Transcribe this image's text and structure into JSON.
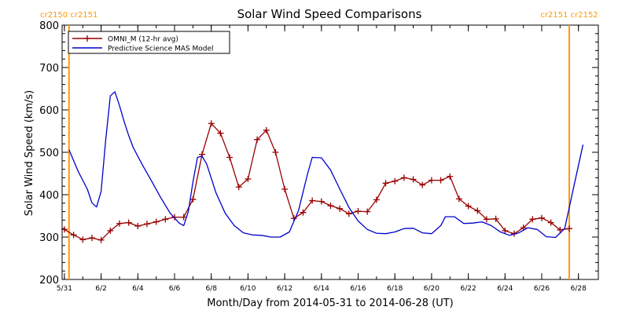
{
  "chart_data": {
    "type": "line",
    "title": "Solar Wind Speed Comparisons",
    "xlabel": "Month/Day from 2014-05-31 to 2014-06-28 (UT)",
    "ylabel": "Solar Wind Speed (km/s)",
    "xlim": [
      "2014-05-30T21:00",
      "2014-06-29T02:00"
    ],
    "ylim": [
      200,
      800
    ],
    "y_ticks": [
      200,
      300,
      400,
      500,
      600,
      700,
      800
    ],
    "x_ticks": [
      {
        "date": "2014-05-31",
        "label": "5/31"
      },
      {
        "date": "2014-06-02",
        "label": "6/2"
      },
      {
        "date": "2014-06-04",
        "label": "6/4"
      },
      {
        "date": "2014-06-06",
        "label": "6/6"
      },
      {
        "date": "2014-06-08",
        "label": "6/8"
      },
      {
        "date": "2014-06-10",
        "label": "6/10"
      },
      {
        "date": "2014-06-12",
        "label": "6/12"
      },
      {
        "date": "2014-06-14",
        "label": "6/14"
      },
      {
        "date": "2014-06-16",
        "label": "6/16"
      },
      {
        "date": "2014-06-18",
        "label": "6/18"
      },
      {
        "date": "2014-06-20",
        "label": "6/20"
      },
      {
        "date": "2014-06-22",
        "label": "6/22"
      },
      {
        "date": "2014-06-24",
        "label": "6/24"
      },
      {
        "date": "2014-06-26",
        "label": "6/26"
      },
      {
        "date": "2014-06-28",
        "label": "6/28"
      }
    ],
    "grid": false,
    "legend_position": "top-left",
    "carrington_markers": [
      {
        "date": "2014-05-31T06:00",
        "label": "cr2150 cr2151",
        "color": "#ff9900"
      },
      {
        "date": "2014-06-27T12:00",
        "label": "cr2151 cr2152",
        "color": "#ff9900"
      }
    ],
    "series": [
      {
        "name": "OMNI_M (12-hr avg)",
        "color": "#990000",
        "marker": "+",
        "points": [
          [
            "2014-05-31T00:00",
            318
          ],
          [
            "2014-05-31T12:00",
            305
          ],
          [
            "2014-06-01T00:00",
            294
          ],
          [
            "2014-06-01T12:00",
            298
          ],
          [
            "2014-06-02T00:00",
            293
          ],
          [
            "2014-06-02T12:00",
            315
          ],
          [
            "2014-06-03T00:00",
            332
          ],
          [
            "2014-06-03T12:00",
            334
          ],
          [
            "2014-06-04T00:00",
            326
          ],
          [
            "2014-06-04T12:00",
            331
          ],
          [
            "2014-06-05T00:00",
            336
          ],
          [
            "2014-06-05T12:00",
            342
          ],
          [
            "2014-06-06T00:00",
            347
          ],
          [
            "2014-06-06T12:00",
            347
          ],
          [
            "2014-06-07T00:00",
            389
          ],
          [
            "2014-06-07T12:00",
            495
          ],
          [
            "2014-06-08T00:00",
            568
          ],
          [
            "2014-06-08T12:00",
            545
          ],
          [
            "2014-06-09T00:00",
            488
          ],
          [
            "2014-06-09T12:00",
            418
          ],
          [
            "2014-06-10T00:00",
            437
          ],
          [
            "2014-06-10T12:00",
            530
          ],
          [
            "2014-06-11T00:00",
            552
          ],
          [
            "2014-06-11T12:00",
            500
          ],
          [
            "2014-06-12T00:00",
            413
          ],
          [
            "2014-06-12T12:00",
            344
          ],
          [
            "2014-06-13T00:00",
            358
          ],
          [
            "2014-06-13T12:00",
            386
          ],
          [
            "2014-06-14T00:00",
            384
          ],
          [
            "2014-06-14T12:00",
            374
          ],
          [
            "2014-06-15T00:00",
            367
          ],
          [
            "2014-06-15T12:00",
            355
          ],
          [
            "2014-06-16T00:00",
            361
          ],
          [
            "2014-06-16T12:00",
            360
          ],
          [
            "2014-06-17T00:00",
            388
          ],
          [
            "2014-06-17T12:00",
            427
          ],
          [
            "2014-06-18T00:00",
            432
          ],
          [
            "2014-06-18T12:00",
            440
          ],
          [
            "2014-06-19T00:00",
            436
          ],
          [
            "2014-06-19T12:00",
            423
          ],
          [
            "2014-06-20T00:00",
            434
          ],
          [
            "2014-06-20T12:00",
            434
          ],
          [
            "2014-06-21T00:00",
            443
          ],
          [
            "2014-06-21T12:00",
            390
          ],
          [
            "2014-06-22T00:00",
            373
          ],
          [
            "2014-06-22T12:00",
            362
          ],
          [
            "2014-06-23T00:00",
            342
          ],
          [
            "2014-06-23T12:00",
            343
          ],
          [
            "2014-06-24T00:00",
            315
          ],
          [
            "2014-06-24T12:00",
            308
          ],
          [
            "2014-06-25T00:00",
            322
          ],
          [
            "2014-06-25T12:00",
            342
          ],
          [
            "2014-06-26T00:00",
            345
          ],
          [
            "2014-06-26T12:00",
            334
          ],
          [
            "2014-06-27T00:00",
            317
          ],
          [
            "2014-06-27T12:00",
            320
          ]
        ]
      },
      {
        "name": "Predictive Science MAS Model",
        "color": "#0000cc",
        "marker": "none",
        "points": [
          [
            "2014-05-31T06:00",
            506
          ],
          [
            "2014-05-31T18:00",
            455
          ],
          [
            "2014-06-01T06:00",
            413
          ],
          [
            "2014-06-01T12:00",
            381
          ],
          [
            "2014-06-01T18:00",
            371
          ],
          [
            "2014-06-02T00:00",
            408
          ],
          [
            "2014-06-02T06:00",
            530
          ],
          [
            "2014-06-02T12:00",
            633
          ],
          [
            "2014-06-02T18:00",
            643
          ],
          [
            "2014-06-03T00:00",
            610
          ],
          [
            "2014-06-03T06:00",
            573
          ],
          [
            "2014-06-03T12:00",
            540
          ],
          [
            "2014-06-03T18:00",
            511
          ],
          [
            "2014-06-04T06:00",
            470
          ],
          [
            "2014-06-04T18:00",
            432
          ],
          [
            "2014-06-05T06:00",
            393
          ],
          [
            "2014-06-05T18:00",
            357
          ],
          [
            "2014-06-06T06:00",
            333
          ],
          [
            "2014-06-06T12:00",
            327
          ],
          [
            "2014-06-06T18:00",
            360
          ],
          [
            "2014-06-07T00:00",
            430
          ],
          [
            "2014-06-07T06:00",
            488
          ],
          [
            "2014-06-07T12:00",
            491
          ],
          [
            "2014-06-07T18:00",
            472
          ],
          [
            "2014-06-08T06:00",
            405
          ],
          [
            "2014-06-08T18:00",
            357
          ],
          [
            "2014-06-09T06:00",
            327
          ],
          [
            "2014-06-09T18:00",
            310
          ],
          [
            "2014-06-10T06:00",
            305
          ],
          [
            "2014-06-10T18:00",
            304
          ],
          [
            "2014-06-11T06:00",
            300
          ],
          [
            "2014-06-11T18:00",
            300
          ],
          [
            "2014-06-12T06:00",
            312
          ],
          [
            "2014-06-12T18:00",
            362
          ],
          [
            "2014-06-13T06:00",
            450
          ],
          [
            "2014-06-13T12:00",
            488
          ],
          [
            "2014-06-14T00:00",
            487
          ],
          [
            "2014-06-14T12:00",
            458
          ],
          [
            "2014-06-15T00:00",
            413
          ],
          [
            "2014-06-15T12:00",
            370
          ],
          [
            "2014-06-16T00:00",
            338
          ],
          [
            "2014-06-16T12:00",
            318
          ],
          [
            "2014-06-17T00:00",
            309
          ],
          [
            "2014-06-17T12:00",
            308
          ],
          [
            "2014-06-18T00:00",
            312
          ],
          [
            "2014-06-18T12:00",
            320
          ],
          [
            "2014-06-19T00:00",
            321
          ],
          [
            "2014-06-19T12:00",
            310
          ],
          [
            "2014-06-20T00:00",
            308
          ],
          [
            "2014-06-20T12:00",
            327
          ],
          [
            "2014-06-20T18:00",
            348
          ],
          [
            "2014-06-21T06:00",
            348
          ],
          [
            "2014-06-21T18:00",
            332
          ],
          [
            "2014-06-22T06:00",
            333
          ],
          [
            "2014-06-22T18:00",
            336
          ],
          [
            "2014-06-23T06:00",
            327
          ],
          [
            "2014-06-23T18:00",
            312
          ],
          [
            "2014-06-24T06:00",
            304
          ],
          [
            "2014-06-24T18:00",
            310
          ],
          [
            "2014-06-25T06:00",
            322
          ],
          [
            "2014-06-25T18:00",
            318
          ],
          [
            "2014-06-26T06:00",
            301
          ],
          [
            "2014-06-26T18:00",
            299
          ],
          [
            "2014-06-27T06:00",
            320
          ],
          [
            "2014-06-27T18:00",
            420
          ],
          [
            "2014-06-28T06:00",
            518
          ]
        ]
      }
    ]
  }
}
